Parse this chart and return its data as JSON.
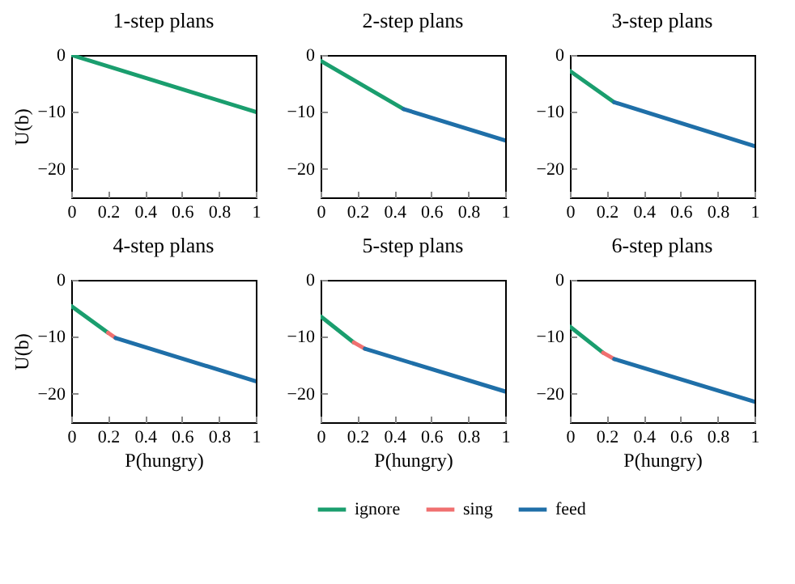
{
  "chart_data": [
    {
      "type": "line",
      "title": "1-step plans",
      "ylabel": "U(b)",
      "xlim": [
        0,
        1
      ],
      "xticks": [
        0,
        0.2,
        0.4,
        0.6,
        0.8,
        1
      ],
      "ylim": [
        -25,
        0
      ],
      "yticks": [
        -20,
        -10,
        0
      ],
      "grid": false,
      "series": [
        {
          "color": "#1a9e6e",
          "x": [
            0,
            1
          ],
          "values": [
            0,
            -10
          ]
        }
      ]
    },
    {
      "type": "line",
      "title": "2-step plans",
      "xlim": [
        0,
        1
      ],
      "xticks": [
        0,
        0.2,
        0.4,
        0.6,
        0.8,
        1
      ],
      "ylim": [
        -25,
        0
      ],
      "yticks": [
        -20,
        -10,
        0
      ],
      "grid": false,
      "series": [
        {
          "color": "#1a9e6e",
          "x": [
            0,
            0.45
          ],
          "values": [
            -1,
            -9.5
          ]
        },
        {
          "color": "#1f6fa8",
          "x": [
            0.45,
            1
          ],
          "values": [
            -9.5,
            -15
          ]
        }
      ]
    },
    {
      "type": "line",
      "title": "3-step plans",
      "xlim": [
        0,
        1
      ],
      "xticks": [
        0,
        0.2,
        0.4,
        0.6,
        0.8,
        1
      ],
      "ylim": [
        -25,
        0
      ],
      "yticks": [
        -20,
        -10,
        0
      ],
      "grid": false,
      "series": [
        {
          "color": "#1a9e6e",
          "x": [
            0,
            0.24
          ],
          "values": [
            -2.8,
            -8.3
          ]
        },
        {
          "color": "#1f6fa8",
          "x": [
            0.24,
            1
          ],
          "values": [
            -8.3,
            -16
          ]
        }
      ]
    },
    {
      "type": "line",
      "title": "4-step plans",
      "xlabel": "P(hungry)",
      "ylabel": "U(b)",
      "xlim": [
        0,
        1
      ],
      "xticks": [
        0,
        0.2,
        0.4,
        0.6,
        0.8,
        1
      ],
      "ylim": [
        -25,
        0
      ],
      "yticks": [
        -20,
        -10,
        0
      ],
      "grid": false,
      "series": [
        {
          "color": "#1a9e6e",
          "x": [
            0,
            0.2
          ],
          "values": [
            -4.6,
            -9.3
          ]
        },
        {
          "color": "#f07070",
          "x": [
            0.2,
            0.24
          ],
          "values": [
            -9.3,
            -10.2
          ]
        },
        {
          "color": "#1f6fa8",
          "x": [
            0.24,
            1
          ],
          "values": [
            -10.2,
            -17.8
          ]
        }
      ]
    },
    {
      "type": "line",
      "title": "5-step plans",
      "xlabel": "P(hungry)",
      "xlim": [
        0,
        1
      ],
      "xticks": [
        0,
        0.2,
        0.4,
        0.6,
        0.8,
        1
      ],
      "ylim": [
        -25,
        0
      ],
      "yticks": [
        -20,
        -10,
        0
      ],
      "grid": false,
      "legend": "bottom",
      "series": [
        {
          "name": "ignore",
          "color": "#1a9e6e",
          "x": [
            0,
            0.18
          ],
          "values": [
            -6.4,
            -11
          ]
        },
        {
          "name": "sing",
          "color": "#f07070",
          "x": [
            0.18,
            0.24
          ],
          "values": [
            -11,
            -12.1
          ]
        },
        {
          "name": "feed",
          "color": "#1f6fa8",
          "x": [
            0.24,
            1
          ],
          "values": [
            -12.1,
            -19.6
          ]
        }
      ]
    },
    {
      "type": "line",
      "title": "6-step plans",
      "xlabel": "P(hungry)",
      "xlim": [
        0,
        1
      ],
      "xticks": [
        0,
        0.2,
        0.4,
        0.6,
        0.8,
        1
      ],
      "ylim": [
        -25,
        0
      ],
      "yticks": [
        -20,
        -10,
        0
      ],
      "grid": false,
      "series": [
        {
          "color": "#1a9e6e",
          "x": [
            0,
            0.18
          ],
          "values": [
            -8.2,
            -12.8
          ]
        },
        {
          "color": "#f07070",
          "x": [
            0.18,
            0.24
          ],
          "values": [
            -12.8,
            -13.9
          ]
        },
        {
          "color": "#1f6fa8",
          "x": [
            0.24,
            1
          ],
          "values": [
            -13.9,
            -21.4
          ]
        }
      ]
    }
  ]
}
